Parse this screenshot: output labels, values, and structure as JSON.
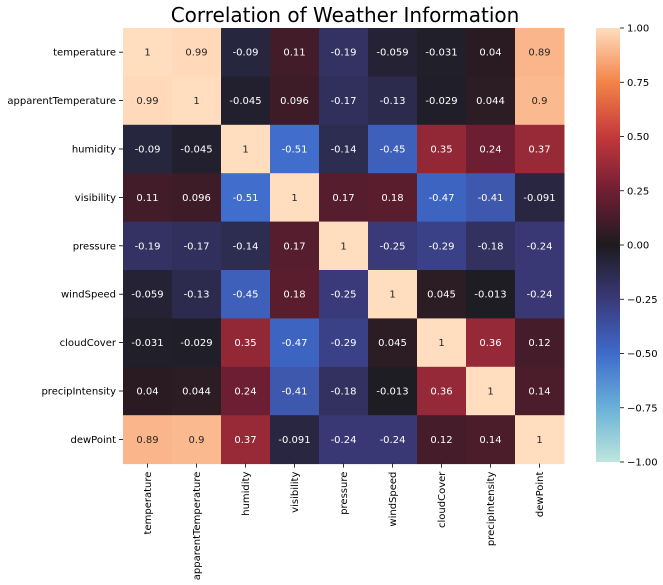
{
  "chart_data": {
    "type": "heatmap",
    "title": "Correlation of Weather Information",
    "xlabel": "",
    "ylabel": "",
    "variables": [
      "temperature",
      "apparentTemperature",
      "humidity",
      "visibility",
      "pressure",
      "windSpeed",
      "cloudCover",
      "precipIntensity",
      "dewPoint"
    ],
    "matrix": [
      [
        1,
        0.99,
        -0.09,
        0.11,
        -0.19,
        -0.059,
        -0.031,
        0.04,
        0.89
      ],
      [
        0.99,
        1,
        -0.045,
        0.096,
        -0.17,
        -0.13,
        -0.029,
        0.044,
        0.9
      ],
      [
        -0.09,
        -0.045,
        1,
        -0.51,
        -0.14,
        -0.45,
        0.35,
        0.24,
        0.37
      ],
      [
        0.11,
        0.096,
        -0.51,
        1,
        0.17,
        0.18,
        -0.47,
        -0.41,
        -0.091
      ],
      [
        -0.19,
        -0.17,
        -0.14,
        0.17,
        1,
        -0.25,
        -0.29,
        -0.18,
        -0.24
      ],
      [
        -0.059,
        -0.13,
        -0.45,
        0.18,
        -0.25,
        1,
        0.045,
        -0.013,
        -0.24
      ],
      [
        -0.031,
        -0.029,
        0.35,
        -0.47,
        -0.29,
        0.045,
        1,
        0.36,
        0.12
      ],
      [
        0.04,
        0.044,
        0.24,
        -0.41,
        -0.18,
        -0.013,
        0.36,
        1,
        0.14
      ],
      [
        0.89,
        0.9,
        0.37,
        -0.091,
        -0.24,
        -0.24,
        0.12,
        0.14,
        1
      ]
    ],
    "colorbar": {
      "range": [
        -1.0,
        1.0
      ],
      "ticks": [
        1.0,
        0.75,
        0.5,
        0.25,
        0.0,
        -0.25,
        -0.5,
        -0.75,
        -1.0
      ],
      "tick_labels": [
        "1.00",
        "0.75",
        "0.50",
        "0.25",
        "0.00",
        "−0.25",
        "−0.50",
        "−0.75",
        "−1.00"
      ],
      "colormap": "icefire"
    },
    "grid": false,
    "legend": "colorbar-right"
  }
}
